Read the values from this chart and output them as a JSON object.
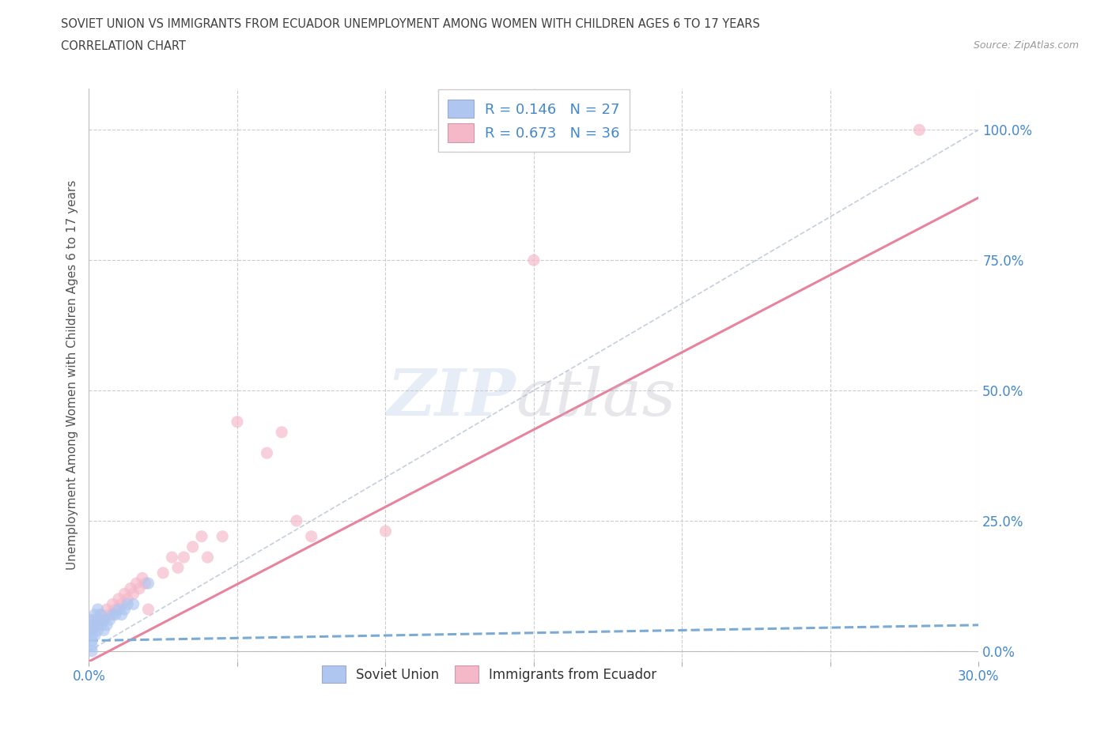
{
  "title_line1": "SOVIET UNION VS IMMIGRANTS FROM ECUADOR UNEMPLOYMENT AMONG WOMEN WITH CHILDREN AGES 6 TO 17 YEARS",
  "title_line2": "CORRELATION CHART",
  "source": "Source: ZipAtlas.com",
  "ylabel": "Unemployment Among Women with Children Ages 6 to 17 years",
  "xlim": [
    0.0,
    0.3
  ],
  "ylim": [
    -0.02,
    1.08
  ],
  "ytick_labels": [
    "0.0%",
    "25.0%",
    "50.0%",
    "75.0%",
    "100.0%"
  ],
  "ytick_values": [
    0.0,
    0.25,
    0.5,
    0.75,
    1.0
  ],
  "xtick_labels": [
    "0.0%",
    "",
    "",
    "",
    "",
    "",
    "30.0%"
  ],
  "xtick_values": [
    0.0,
    0.05,
    0.1,
    0.15,
    0.2,
    0.25,
    0.3
  ],
  "xtick_minor_values": [
    0.05,
    0.1,
    0.15,
    0.2,
    0.25
  ],
  "legend_entries": [
    {
      "label": "Soviet Union",
      "color": "#aec6f0",
      "R": "0.146",
      "N": "27"
    },
    {
      "label": "Immigrants from Ecuador",
      "color": "#f5b8c8",
      "R": "0.673",
      "N": "36"
    }
  ],
  "blue_scatter_x": [
    0.001,
    0.001,
    0.001,
    0.001,
    0.001,
    0.001,
    0.001,
    0.002,
    0.002,
    0.002,
    0.003,
    0.003,
    0.003,
    0.004,
    0.004,
    0.005,
    0.005,
    0.006,
    0.007,
    0.008,
    0.009,
    0.01,
    0.011,
    0.012,
    0.013,
    0.015,
    0.02
  ],
  "blue_scatter_y": [
    0.0,
    0.01,
    0.02,
    0.03,
    0.04,
    0.05,
    0.06,
    0.03,
    0.05,
    0.07,
    0.04,
    0.06,
    0.08,
    0.05,
    0.07,
    0.04,
    0.06,
    0.05,
    0.06,
    0.07,
    0.07,
    0.08,
    0.07,
    0.08,
    0.09,
    0.09,
    0.13
  ],
  "pink_scatter_x": [
    0.001,
    0.002,
    0.003,
    0.004,
    0.005,
    0.006,
    0.007,
    0.008,
    0.009,
    0.01,
    0.011,
    0.012,
    0.013,
    0.014,
    0.015,
    0.016,
    0.017,
    0.018,
    0.019,
    0.02,
    0.025,
    0.028,
    0.03,
    0.032,
    0.035,
    0.038,
    0.04,
    0.045,
    0.05,
    0.06,
    0.065,
    0.07,
    0.075,
    0.1,
    0.15,
    0.28
  ],
  "pink_scatter_y": [
    0.04,
    0.06,
    0.05,
    0.07,
    0.06,
    0.08,
    0.07,
    0.09,
    0.08,
    0.1,
    0.09,
    0.11,
    0.1,
    0.12,
    0.11,
    0.13,
    0.12,
    0.14,
    0.13,
    0.08,
    0.15,
    0.18,
    0.16,
    0.18,
    0.2,
    0.22,
    0.18,
    0.22,
    0.44,
    0.38,
    0.42,
    0.25,
    0.22,
    0.23,
    0.75,
    1.0
  ],
  "blue_line_y_at_0": 0.02,
  "blue_line_y_at_030": 0.05,
  "pink_line_y_at_0": -0.02,
  "pink_line_y_at_030": 0.87,
  "watermark_zip": "ZIP",
  "watermark_atlas": "atlas",
  "background_color": "#ffffff",
  "grid_color": "#cccccc",
  "scatter_alpha": 0.65,
  "scatter_size": 120,
  "blue_color": "#aec6f0",
  "pink_color": "#f5b8c8",
  "blue_line_color": "#7baad4",
  "pink_line_color": "#e8839e",
  "title_color": "#404040",
  "axis_label_color": "#555555",
  "tick_label_color": "#4488cc",
  "legend_text_color": "#4488cc",
  "legend_label_color": "#333333"
}
